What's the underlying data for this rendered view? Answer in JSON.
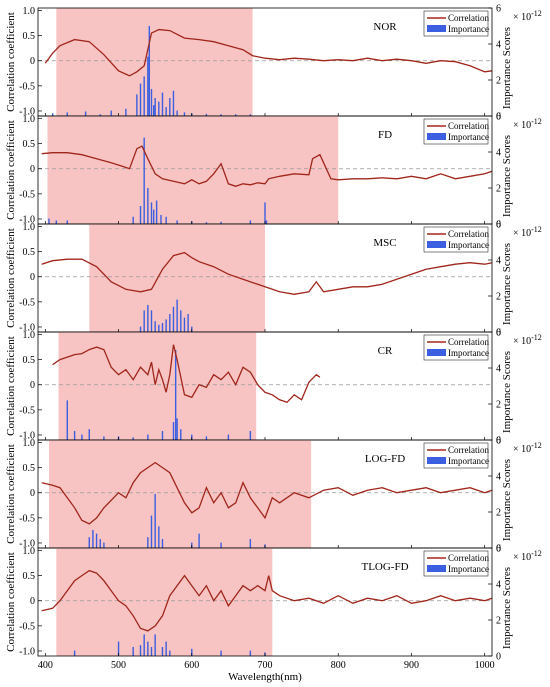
{
  "figure": {
    "xlabel": "Wavelength(nm)",
    "ylabel_left": "Correlation coefficient",
    "ylabel_right": "Importance Scores",
    "exponent_label": "× 10",
    "exponent_power": "-12",
    "legend_correlation": "Correlation",
    "legend_importance": "Importance"
  },
  "colors": {
    "highlight": "#f7c3c3",
    "correlation": "#a0261b",
    "importance": "#3b5fe0",
    "zero_line": "#999999"
  },
  "chart_data": [
    {
      "type": "line",
      "name": "NOR",
      "xlim": [
        390,
        1010
      ],
      "ylim_left": [
        -1.1,
        1.05
      ],
      "ylim_right": [
        0,
        6
      ],
      "left_ticks": [
        "1.0",
        "0.5",
        "0",
        "-0.5",
        "-1.0"
      ],
      "right_ticks": [
        "6",
        "4",
        "2",
        "0"
      ],
      "highlight_range": [
        415,
        683
      ],
      "correlation": {
        "x": [
          400,
          410,
          420,
          440,
          460,
          480,
          500,
          515,
          525,
          535,
          545,
          555,
          570,
          590,
          610,
          630,
          650,
          670,
          683,
          700,
          720,
          740,
          760,
          780,
          800,
          820,
          840,
          860,
          880,
          900,
          920,
          940,
          960,
          980,
          1000,
          1010
        ],
        "y": [
          -0.05,
          0.15,
          0.3,
          0.42,
          0.38,
          0.12,
          -0.2,
          -0.3,
          -0.22,
          -0.1,
          0.55,
          0.62,
          0.6,
          0.45,
          0.42,
          0.38,
          0.3,
          0.22,
          0.1,
          0.05,
          0.02,
          0.05,
          0.03,
          0.0,
          0.02,
          0.0,
          0.05,
          0.0,
          0.03,
          0.0,
          -0.05,
          0.0,
          -0.02,
          -0.1,
          -0.22,
          -0.2
        ]
      },
      "importance": {
        "x": [
          410,
          430,
          455,
          475,
          490,
          510,
          525,
          530,
          535,
          540,
          542,
          545,
          548,
          550,
          555,
          560,
          565,
          570,
          575,
          580,
          590,
          600,
          620,
          640,
          660,
          680
        ],
        "y": [
          0.15,
          0.2,
          0.25,
          0.1,
          0.3,
          0.4,
          1.2,
          1.8,
          2.2,
          3.3,
          5.0,
          1.5,
          0.6,
          1.0,
          0.8,
          1.3,
          0.5,
          1.0,
          1.4,
          0.3,
          0.2,
          0.15,
          0.12,
          0.1,
          0.1,
          0.1
        ]
      }
    },
    {
      "type": "line",
      "name": "FD",
      "xlim": [
        390,
        1010
      ],
      "ylim_left": [
        -1.1,
        1.05
      ],
      "ylim_right": [
        0,
        6
      ],
      "left_ticks": [
        "1.0",
        "0.5",
        "0",
        "-0.5",
        "-1.0"
      ],
      "right_ticks": [
        "6",
        "4",
        "2",
        "0"
      ],
      "highlight_range": [
        403,
        800
      ],
      "correlation": {
        "x": [
          395,
          410,
          430,
          450,
          470,
          490,
          505,
          515,
          525,
          532,
          540,
          550,
          560,
          575,
          590,
          600,
          610,
          620,
          630,
          640,
          650,
          660,
          670,
          680,
          690,
          700,
          705,
          720,
          740,
          760,
          765,
          775,
          790,
          800,
          820,
          840,
          860,
          880,
          900,
          920,
          940,
          960,
          980,
          1000,
          1010
        ],
        "y": [
          0.3,
          0.32,
          0.32,
          0.28,
          0.2,
          0.12,
          0.05,
          0.0,
          0.4,
          0.45,
          0.2,
          -0.1,
          -0.2,
          -0.25,
          -0.3,
          -0.22,
          -0.3,
          -0.25,
          -0.1,
          0.1,
          -0.3,
          -0.35,
          -0.3,
          -0.32,
          -0.28,
          -0.3,
          -0.2,
          -0.15,
          -0.1,
          -0.12,
          0.2,
          0.28,
          -0.2,
          -0.22,
          -0.2,
          -0.2,
          -0.18,
          -0.2,
          -0.15,
          -0.2,
          -0.1,
          -0.2,
          -0.15,
          -0.1,
          -0.05
        ]
      },
      "importance": {
        "x": [
          405,
          415,
          430,
          520,
          530,
          535,
          540,
          545,
          548,
          552,
          558,
          565,
          580,
          600,
          620,
          640,
          680,
          700,
          702
        ],
        "y": [
          0.3,
          0.2,
          0.2,
          0.4,
          1.0,
          4.8,
          2.0,
          1.2,
          0.8,
          1.3,
          0.5,
          0.4,
          0.2,
          0.15,
          0.1,
          0.12,
          0.2,
          1.2,
          0.2
        ]
      }
    },
    {
      "type": "line",
      "name": "MSC",
      "xlim": [
        390,
        1010
      ],
      "ylim_left": [
        -1.1,
        1.05
      ],
      "ylim_right": [
        0,
        6
      ],
      "left_ticks": [
        "1.0",
        "0.5",
        "0",
        "-0.5",
        "-1.0"
      ],
      "right_ticks": [
        "6",
        "4",
        "2",
        "0"
      ],
      "highlight_range": [
        460,
        700
      ],
      "correlation": {
        "x": [
          395,
          410,
          430,
          450,
          470,
          490,
          510,
          530,
          545,
          560,
          575,
          590,
          600,
          610,
          630,
          650,
          670,
          690,
          700,
          720,
          740,
          760,
          770,
          780,
          800,
          820,
          840,
          860,
          880,
          900,
          920,
          940,
          960,
          980,
          1000,
          1010
        ],
        "y": [
          0.25,
          0.32,
          0.35,
          0.35,
          0.2,
          -0.1,
          -0.25,
          -0.3,
          -0.25,
          0.15,
          0.42,
          0.48,
          0.38,
          0.3,
          0.2,
          0.05,
          -0.05,
          -0.15,
          -0.2,
          -0.3,
          -0.35,
          -0.3,
          -0.1,
          -0.3,
          -0.25,
          -0.2,
          -0.2,
          -0.15,
          -0.05,
          0.05,
          0.15,
          0.2,
          0.25,
          0.28,
          0.25,
          0.28
        ]
      },
      "importance": {
        "x": [
          530,
          535,
          540,
          545,
          550,
          555,
          560,
          565,
          570,
          575,
          580,
          585,
          590,
          595,
          600
        ],
        "y": [
          0.3,
          1.2,
          1.5,
          1.2,
          0.6,
          0.4,
          0.5,
          0.7,
          1.0,
          1.4,
          1.8,
          1.2,
          0.8,
          1.0,
          0.3
        ]
      }
    },
    {
      "type": "line",
      "name": "CR",
      "xlim": [
        390,
        1010
      ],
      "ylim_left": [
        -1.1,
        1.05
      ],
      "ylim_right": [
        0,
        6
      ],
      "left_ticks": [
        "1.0",
        "0.5",
        "0",
        "-0.5",
        "-1.0"
      ],
      "right_ticks": [
        "6",
        "4",
        "2",
        "0"
      ],
      "highlight_range": [
        418,
        688
      ],
      "correlation": {
        "x": [
          410,
          420,
          430,
          440,
          450,
          460,
          470,
          480,
          490,
          500,
          510,
          520,
          530,
          540,
          545,
          550,
          555,
          560,
          565,
          570,
          575,
          580,
          590,
          600,
          610,
          620,
          630,
          640,
          650,
          660,
          670,
          680,
          690,
          700,
          710,
          720,
          730,
          740,
          750,
          760,
          770,
          775
        ],
        "y": [
          0.4,
          0.5,
          0.55,
          0.6,
          0.62,
          0.7,
          0.75,
          0.7,
          0.35,
          0.2,
          0.3,
          0.1,
          0.35,
          0.2,
          0.45,
          0.0,
          0.3,
          0.1,
          -0.15,
          0.2,
          0.8,
          0.5,
          -0.2,
          -0.25,
          0.0,
          -0.05,
          0.2,
          0.1,
          0.25,
          0.0,
          0.35,
          0.25,
          0.0,
          -0.15,
          -0.2,
          -0.3,
          -0.35,
          -0.2,
          -0.3,
          0.05,
          0.2,
          0.15
        ]
      },
      "importance": {
        "x": [
          430,
          440,
          450,
          460,
          480,
          500,
          520,
          540,
          560,
          575,
          578,
          580,
          585,
          600,
          620,
          650,
          680
        ],
        "y": [
          2.2,
          0.5,
          0.3,
          0.6,
          0.2,
          0.2,
          0.15,
          0.3,
          0.5,
          1.0,
          5.0,
          1.2,
          0.6,
          0.3,
          0.2,
          0.3,
          0.5
        ]
      }
    },
    {
      "type": "line",
      "name": "LOG-FD",
      "xlim": [
        390,
        1010
      ],
      "ylim_left": [
        -1.1,
        1.05
      ],
      "ylim_right": [
        0,
        6
      ],
      "left_ticks": [
        "1.0",
        "0.5",
        "0",
        "-0.5",
        "-1.0"
      ],
      "right_ticks": [
        "6",
        "4",
        "2",
        "0"
      ],
      "highlight_range": [
        405,
        763
      ],
      "correlation": {
        "x": [
          395,
          410,
          420,
          430,
          440,
          450,
          460,
          470,
          480,
          490,
          500,
          510,
          520,
          530,
          540,
          550,
          560,
          570,
          580,
          590,
          600,
          610,
          620,
          630,
          640,
          650,
          660,
          670,
          680,
          690,
          700,
          710,
          720,
          740,
          760,
          780,
          800,
          820,
          840,
          860,
          880,
          900,
          920,
          940,
          960,
          980,
          1000,
          1010
        ],
        "y": [
          0.2,
          0.15,
          0.1,
          -0.1,
          -0.3,
          -0.55,
          -0.62,
          -0.5,
          -0.3,
          -0.15,
          0.0,
          -0.1,
          0.2,
          0.4,
          0.5,
          0.6,
          0.5,
          0.4,
          0.1,
          -0.2,
          -0.4,
          -0.3,
          0.1,
          -0.2,
          0.0,
          -0.3,
          -0.2,
          0.2,
          -0.1,
          -0.3,
          -0.5,
          -0.1,
          -0.2,
          0.0,
          -0.1,
          0.05,
          0.1,
          -0.05,
          0.05,
          0.1,
          0.0,
          0.05,
          0.1,
          0.0,
          0.05,
          0.1,
          0.0,
          0.05
        ]
      },
      "importance": {
        "x": [
          460,
          465,
          470,
          475,
          480,
          540,
          545,
          550,
          555,
          560,
          600,
          610,
          640,
          680,
          700
        ],
        "y": [
          0.6,
          1.0,
          0.8,
          0.5,
          0.3,
          0.6,
          1.8,
          3.0,
          1.2,
          0.5,
          0.3,
          0.8,
          0.3,
          0.5,
          0.2
        ]
      }
    },
    {
      "type": "line",
      "name": "TLOG-FD",
      "xlim": [
        390,
        1010
      ],
      "ylim_left": [
        -1.1,
        1.05
      ],
      "ylim_right": [
        0,
        6
      ],
      "left_ticks": [
        "1.0",
        "0.5",
        "0",
        "-0.5",
        "-1.0"
      ],
      "right_ticks": [
        "6",
        "4",
        "2",
        "0"
      ],
      "highlight_range": [
        415,
        710
      ],
      "correlation": {
        "x": [
          395,
          410,
          420,
          430,
          440,
          450,
          460,
          470,
          480,
          490,
          500,
          510,
          520,
          530,
          540,
          550,
          560,
          570,
          580,
          590,
          600,
          610,
          620,
          630,
          640,
          650,
          660,
          670,
          680,
          690,
          700,
          705,
          710,
          720,
          740,
          760,
          780,
          800,
          820,
          840,
          860,
          880,
          900,
          920,
          940,
          960,
          980,
          1000,
          1010
        ],
        "y": [
          -0.2,
          -0.15,
          0.0,
          0.2,
          0.4,
          0.5,
          0.6,
          0.55,
          0.4,
          0.2,
          0.0,
          -0.1,
          -0.3,
          -0.55,
          -0.6,
          -0.5,
          -0.3,
          0.1,
          0.3,
          0.5,
          0.3,
          0.1,
          0.3,
          0.0,
          0.2,
          -0.1,
          0.1,
          0.3,
          0.2,
          0.3,
          0.2,
          0.5,
          0.2,
          0.1,
          0.0,
          0.05,
          -0.05,
          0.1,
          -0.05,
          0.05,
          0.0,
          0.1,
          -0.05,
          0.0,
          0.1,
          0.0,
          0.05,
          0.0,
          0.05
        ]
      },
      "importance": {
        "x": [
          440,
          500,
          520,
          530,
          535,
          540,
          545,
          550,
          560,
          565,
          570,
          600,
          640,
          680,
          700
        ],
        "y": [
          0.3,
          0.8,
          0.5,
          0.6,
          1.2,
          0.8,
          0.5,
          1.2,
          0.5,
          0.8,
          0.3,
          0.4,
          0.3,
          0.3,
          0.2
        ]
      }
    }
  ],
  "x_ticks": [
    "400",
    "500",
    "600",
    "700",
    "800",
    "900",
    "1000"
  ]
}
